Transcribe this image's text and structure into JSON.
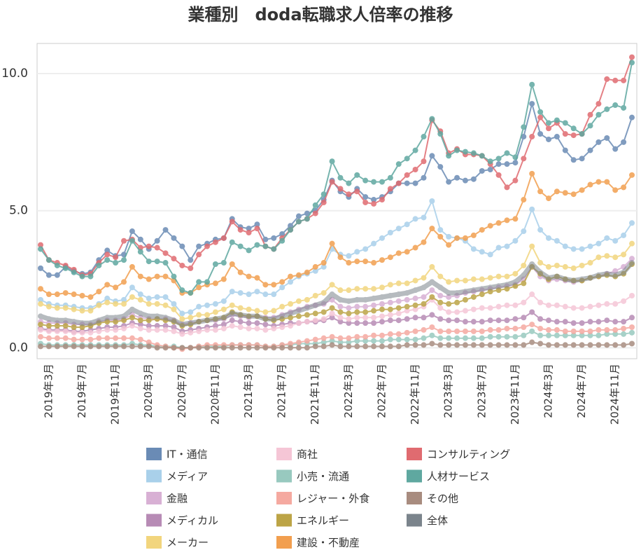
{
  "chart_data": {
    "type": "line",
    "title": "業種別　doda転職求人倍率の推移",
    "categories": [
      null,
      "2019年3月",
      null,
      null,
      null,
      "2019年7月",
      null,
      null,
      null,
      "2019年11月",
      null,
      null,
      null,
      "2020年3月",
      null,
      null,
      null,
      "2020年7月",
      null,
      null,
      null,
      "2020年11月",
      null,
      null,
      null,
      "2021年3月",
      null,
      null,
      null,
      "2021年7月",
      null,
      null,
      null,
      "2021年11月",
      null,
      null,
      null,
      "2022年3月",
      null,
      null,
      null,
      "2022年7月",
      null,
      null,
      null,
      "2022年11月",
      null,
      null,
      null,
      "2023年3月",
      null,
      null,
      null,
      "2023年7月",
      null,
      null,
      null,
      "2023年11月",
      null,
      null,
      null,
      "2024年3月",
      null,
      null,
      null,
      "2024年7月",
      null,
      null,
      null,
      "2024年11月",
      null,
      null
    ],
    "ylim": [
      -0.4,
      11.1
    ],
    "yticks": [
      {
        "value": 0,
        "label": "0.0"
      },
      {
        "value": 5,
        "label": "5.0"
      },
      {
        "value": 10,
        "label": "10.0"
      }
    ],
    "grid": true,
    "series": [
      {
        "name": "IT・通信",
        "color": "#6a8bb5",
        "linewidth": 2,
        "values": [
          2.9,
          2.65,
          2.65,
          2.95,
          2.8,
          2.7,
          2.75,
          3.2,
          3.55,
          3.35,
          3.4,
          4.25,
          3.95,
          3.6,
          3.9,
          4.3,
          4.0,
          3.7,
          3.2,
          3.7,
          3.8,
          3.95,
          4.0,
          4.7,
          4.4,
          4.35,
          4.5,
          3.95,
          4.0,
          4.15,
          4.45,
          4.8,
          4.9,
          5.0,
          5.4,
          6.1,
          5.7,
          5.5,
          5.8,
          5.5,
          5.4,
          5.5,
          5.7,
          6.0,
          6.0,
          6.0,
          6.2,
          7.0,
          6.6,
          6.05,
          6.2,
          6.1,
          6.15,
          6.45,
          6.5,
          6.7,
          6.7,
          6.75,
          7.7,
          8.9,
          7.8,
          7.6,
          7.7,
          7.2,
          6.85,
          6.9,
          7.2,
          7.5,
          7.65,
          7.25,
          7.5,
          8.4
        ]
      },
      {
        "name": "メディア",
        "color": "#a9d0ea",
        "linewidth": 2,
        "values": [
          1.75,
          1.6,
          1.55,
          1.55,
          1.5,
          1.45,
          1.45,
          1.6,
          1.8,
          1.7,
          1.75,
          2.2,
          1.95,
          1.8,
          1.85,
          1.85,
          1.6,
          1.25,
          1.3,
          1.5,
          1.55,
          1.6,
          1.7,
          2.05,
          2.0,
          1.95,
          2.05,
          1.95,
          1.95,
          2.2,
          2.4,
          2.6,
          2.7,
          2.8,
          2.95,
          3.6,
          3.4,
          3.35,
          3.5,
          3.6,
          3.8,
          4.0,
          4.2,
          4.35,
          4.5,
          4.7,
          4.75,
          5.35,
          4.3,
          4.05,
          4.0,
          3.9,
          3.6,
          3.5,
          3.4,
          3.65,
          3.7,
          3.9,
          4.25,
          5.05,
          4.3,
          4.0,
          3.9,
          3.7,
          3.6,
          3.6,
          3.7,
          3.8,
          4.0,
          3.9,
          4.1,
          4.55
        ]
      },
      {
        "name": "金融",
        "color": "#d8b0d4",
        "linewidth": 2,
        "values": [
          0.95,
          0.9,
          0.9,
          0.9,
          0.85,
          0.85,
          0.85,
          0.95,
          1.0,
          1.0,
          1.05,
          1.2,
          1.1,
          1.05,
          1.05,
          1.05,
          1.0,
          0.85,
          0.9,
          0.95,
          1.0,
          1.0,
          1.05,
          1.2,
          1.15,
          1.1,
          1.15,
          1.1,
          1.1,
          1.2,
          1.3,
          1.4,
          1.5,
          1.55,
          1.6,
          1.75,
          1.5,
          1.45,
          1.5,
          1.5,
          1.55,
          1.6,
          1.65,
          1.7,
          1.75,
          1.8,
          1.85,
          2.1,
          1.9,
          1.85,
          1.9,
          2.0,
          2.05,
          2.1,
          2.15,
          2.2,
          2.25,
          2.3,
          2.5,
          2.95,
          2.6,
          2.45,
          2.5,
          2.45,
          2.4,
          2.45,
          2.55,
          2.6,
          2.7,
          2.8,
          2.95,
          3.25
        ]
      },
      {
        "name": "メディカル",
        "color": "#b78bb5",
        "linewidth": 2,
        "values": [
          0.7,
          0.65,
          0.65,
          0.65,
          0.6,
          0.6,
          0.65,
          0.7,
          0.75,
          0.75,
          0.8,
          0.9,
          0.85,
          0.8,
          0.8,
          0.8,
          0.75,
          0.6,
          0.65,
          0.7,
          0.75,
          0.8,
          0.85,
          1.0,
          0.95,
          0.9,
          0.9,
          0.85,
          0.8,
          0.85,
          0.9,
          0.9,
          0.95,
          0.95,
          1.0,
          1.1,
          0.95,
          0.9,
          0.9,
          0.9,
          0.9,
          0.95,
          1.0,
          1.0,
          1.05,
          1.1,
          1.1,
          1.2,
          1.05,
          1.0,
          1.0,
          0.95,
          0.95,
          0.95,
          1.0,
          1.0,
          1.0,
          1.05,
          1.1,
          1.3,
          1.05,
          1.0,
          0.95,
          0.95,
          0.9,
          0.9,
          0.95,
          0.95,
          1.0,
          0.95,
          0.95,
          1.1
        ]
      },
      {
        "name": "メーカー",
        "color": "#f2d57d",
        "linewidth": 2,
        "values": [
          1.6,
          1.5,
          1.45,
          1.45,
          1.4,
          1.35,
          1.35,
          1.55,
          1.65,
          1.6,
          1.6,
          1.85,
          1.75,
          1.6,
          1.6,
          1.55,
          1.4,
          1.05,
          1.1,
          1.2,
          1.2,
          1.3,
          1.4,
          1.55,
          1.45,
          1.4,
          1.35,
          1.3,
          1.35,
          1.5,
          1.6,
          1.7,
          1.75,
          1.9,
          2.0,
          2.3,
          2.1,
          2.1,
          2.15,
          2.15,
          2.15,
          2.2,
          2.3,
          2.35,
          2.35,
          2.45,
          2.55,
          2.95,
          2.6,
          2.4,
          2.45,
          2.45,
          2.5,
          2.5,
          2.55,
          2.6,
          2.6,
          2.7,
          3.0,
          3.7,
          3.1,
          2.95,
          3.0,
          2.95,
          2.9,
          3.0,
          3.1,
          3.3,
          3.35,
          3.3,
          3.4,
          3.8
        ]
      },
      {
        "name": "商社",
        "color": "#f5c6d6",
        "linewidth": 2,
        "values": [
          0.65,
          0.6,
          0.6,
          0.6,
          0.55,
          0.55,
          0.55,
          0.6,
          0.65,
          0.65,
          0.7,
          0.8,
          0.7,
          0.65,
          0.65,
          0.65,
          0.6,
          0.5,
          0.55,
          0.6,
          0.65,
          0.65,
          0.7,
          0.8,
          0.75,
          0.7,
          0.7,
          0.65,
          0.7,
          0.75,
          0.8,
          0.9,
          0.95,
          1.0,
          1.05,
          1.25,
          1.1,
          1.05,
          1.1,
          1.1,
          1.1,
          1.15,
          1.2,
          1.25,
          1.35,
          1.4,
          1.5,
          1.75,
          1.45,
          1.3,
          1.3,
          1.35,
          1.4,
          1.45,
          1.45,
          1.5,
          1.55,
          1.55,
          1.65,
          1.95,
          1.65,
          1.55,
          1.55,
          1.5,
          1.45,
          1.45,
          1.5,
          1.55,
          1.6,
          1.6,
          1.7,
          1.9
        ]
      },
      {
        "name": "小売・流通",
        "color": "#98c9bf",
        "linewidth": 2,
        "values": [
          0.15,
          0.1,
          0.1,
          0.1,
          0.1,
          0.1,
          0.1,
          0.1,
          0.1,
          0.1,
          0.1,
          0.15,
          0.1,
          0.1,
          0.05,
          0.05,
          0.05,
          0.0,
          0.0,
          0.05,
          0.05,
          0.05,
          0.05,
          0.1,
          0.1,
          0.1,
          0.1,
          0.05,
          0.05,
          0.1,
          0.1,
          0.15,
          0.15,
          0.15,
          0.2,
          0.25,
          0.2,
          0.2,
          0.25,
          0.25,
          0.25,
          0.25,
          0.3,
          0.3,
          0.3,
          0.3,
          0.35,
          0.45,
          0.35,
          0.35,
          0.35,
          0.35,
          0.35,
          0.35,
          0.4,
          0.4,
          0.4,
          0.4,
          0.45,
          0.6,
          0.45,
          0.45,
          0.45,
          0.45,
          0.45,
          0.45,
          0.45,
          0.45,
          0.5,
          0.5,
          0.5,
          0.55
        ]
      },
      {
        "name": "レジャー・外食",
        "color": "#f5a9a0",
        "linewidth": 2,
        "values": [
          0.4,
          0.35,
          0.35,
          0.35,
          0.3,
          0.3,
          0.3,
          0.35,
          0.35,
          0.35,
          0.35,
          0.35,
          0.3,
          0.2,
          0.1,
          0.05,
          0.0,
          -0.05,
          0.0,
          0.05,
          0.1,
          0.1,
          0.1,
          0.1,
          0.1,
          0.1,
          0.1,
          0.05,
          0.05,
          0.1,
          0.15,
          0.2,
          0.25,
          0.3,
          0.35,
          0.4,
          0.35,
          0.35,
          0.4,
          0.4,
          0.45,
          0.45,
          0.5,
          0.5,
          0.55,
          0.6,
          0.65,
          0.75,
          0.6,
          0.6,
          0.6,
          0.6,
          0.6,
          0.6,
          0.65,
          0.65,
          0.7,
          0.7,
          0.75,
          0.85,
          0.7,
          0.65,
          0.65,
          0.6,
          0.6,
          0.6,
          0.6,
          0.65,
          0.65,
          0.65,
          0.7,
          0.75
        ]
      },
      {
        "name": "エネルギー",
        "color": "#bca446",
        "linewidth": 2,
        "values": [
          0.85,
          0.8,
          0.8,
          0.8,
          0.75,
          0.75,
          0.8,
          0.9,
          0.95,
          0.95,
          1.0,
          1.1,
          1.0,
          1.0,
          1.05,
          1.0,
          0.95,
          0.8,
          0.85,
          0.95,
          1.0,
          1.05,
          1.1,
          1.3,
          1.2,
          1.15,
          1.15,
          1.05,
          1.0,
          1.05,
          1.1,
          1.15,
          1.2,
          1.25,
          1.3,
          1.45,
          1.3,
          1.25,
          1.3,
          1.3,
          1.35,
          1.4,
          1.4,
          1.45,
          1.5,
          1.55,
          1.6,
          1.85,
          1.65,
          1.6,
          1.65,
          1.75,
          1.85,
          1.95,
          2.05,
          2.1,
          2.15,
          2.25,
          2.35,
          2.95,
          2.7,
          2.5,
          2.6,
          2.5,
          2.45,
          2.45,
          2.55,
          2.6,
          2.65,
          2.6,
          2.7,
          3.05
        ]
      },
      {
        "name": "建設・不動産",
        "color": "#f29f4f",
        "linewidth": 2,
        "values": [
          2.15,
          1.95,
          1.95,
          2.0,
          1.95,
          1.9,
          1.85,
          2.05,
          2.3,
          2.2,
          2.4,
          2.95,
          2.6,
          2.5,
          2.6,
          2.6,
          2.45,
          2.0,
          2.0,
          2.2,
          2.3,
          2.35,
          2.5,
          3.05,
          2.75,
          2.6,
          2.55,
          2.3,
          2.3,
          2.4,
          2.6,
          2.65,
          2.75,
          2.95,
          3.1,
          3.8,
          3.3,
          3.1,
          3.15,
          3.15,
          3.1,
          3.2,
          3.3,
          3.45,
          3.5,
          3.65,
          3.85,
          4.35,
          4.05,
          3.75,
          4.0,
          4.0,
          4.1,
          4.3,
          4.45,
          4.55,
          4.65,
          4.7,
          5.4,
          6.35,
          5.7,
          5.45,
          5.7,
          5.65,
          5.6,
          5.75,
          5.95,
          6.05,
          6.05,
          5.75,
          5.85,
          6.3
        ]
      },
      {
        "name": "コンサルティング",
        "color": "#e06b70",
        "linewidth": 2,
        "values": [
          3.75,
          3.2,
          3.1,
          3.0,
          2.85,
          2.65,
          2.7,
          3.1,
          3.4,
          3.3,
          3.9,
          3.95,
          3.65,
          3.7,
          3.65,
          3.45,
          3.25,
          3.0,
          2.9,
          3.4,
          3.7,
          3.85,
          4.0,
          4.6,
          4.3,
          4.2,
          4.35,
          3.7,
          3.6,
          4.0,
          4.3,
          4.6,
          4.7,
          4.9,
          5.3,
          6.05,
          5.8,
          5.6,
          5.7,
          5.3,
          5.25,
          5.4,
          5.8,
          6.0,
          6.3,
          6.5,
          6.8,
          8.3,
          7.9,
          7.1,
          7.25,
          7.05,
          7.05,
          7.0,
          6.7,
          6.3,
          5.85,
          6.1,
          6.9,
          7.7,
          8.4,
          8.0,
          8.2,
          7.8,
          7.75,
          7.8,
          8.5,
          8.9,
          9.8,
          9.75,
          9.75,
          10.6
        ]
      },
      {
        "name": "人材サービス",
        "color": "#5fa8a0",
        "linewidth": 2,
        "values": [
          3.6,
          3.2,
          3.0,
          2.9,
          2.75,
          2.6,
          2.6,
          3.0,
          3.2,
          3.1,
          3.2,
          3.9,
          3.5,
          3.15,
          3.15,
          3.1,
          2.6,
          2.1,
          2.0,
          2.4,
          2.4,
          3.05,
          3.1,
          3.85,
          3.7,
          3.55,
          3.75,
          3.7,
          3.6,
          3.9,
          4.3,
          4.6,
          4.7,
          5.2,
          5.6,
          6.8,
          6.2,
          6.0,
          6.3,
          6.1,
          6.05,
          6.05,
          6.2,
          6.7,
          6.9,
          7.2,
          7.7,
          8.35,
          7.8,
          7.0,
          7.2,
          7.15,
          7.1,
          7.0,
          6.8,
          6.9,
          7.1,
          6.95,
          8.05,
          9.6,
          8.6,
          8.2,
          8.3,
          8.2,
          8.0,
          7.8,
          8.1,
          8.5,
          8.7,
          8.85,
          8.75,
          10.4
        ]
      },
      {
        "name": "その他",
        "color": "#a88c7f",
        "linewidth": 2,
        "values": [
          0.05,
          0.05,
          0.05,
          0.05,
          0.05,
          0.05,
          0.05,
          0.05,
          0.05,
          0.05,
          0.05,
          0.05,
          0.05,
          0.05,
          0.0,
          0.0,
          0.0,
          0.0,
          0.0,
          0.0,
          0.0,
          0.0,
          0.0,
          0.0,
          0.0,
          0.0,
          0.0,
          0.0,
          0.0,
          0.0,
          0.0,
          0.0,
          0.0,
          0.05,
          0.05,
          0.1,
          0.05,
          0.05,
          0.05,
          0.05,
          0.05,
          0.05,
          0.05,
          0.05,
          0.1,
          0.1,
          0.1,
          0.15,
          0.1,
          0.1,
          0.1,
          0.1,
          0.1,
          0.1,
          0.1,
          0.1,
          0.1,
          0.1,
          0.1,
          0.2,
          0.15,
          0.1,
          0.1,
          0.1,
          0.1,
          0.1,
          0.1,
          0.1,
          0.1,
          0.1,
          0.1,
          0.15
        ]
      },
      {
        "name": "全体",
        "color": "#7b848c",
        "linewidth": 7,
        "values": [
          1.15,
          1.05,
          1.0,
          1.0,
          0.95,
          0.9,
          0.9,
          1.0,
          1.1,
          1.1,
          1.15,
          1.4,
          1.25,
          1.15,
          1.15,
          1.1,
          1.0,
          0.85,
          0.9,
          0.95,
          1.0,
          1.05,
          1.1,
          1.25,
          1.2,
          1.15,
          1.15,
          1.05,
          1.05,
          1.15,
          1.25,
          1.35,
          1.45,
          1.55,
          1.65,
          1.95,
          1.75,
          1.7,
          1.75,
          1.75,
          1.8,
          1.85,
          1.9,
          1.95,
          2.0,
          2.1,
          2.2,
          2.4,
          2.2,
          2.0,
          2.0,
          2.05,
          2.1,
          2.15,
          2.2,
          2.25,
          2.3,
          2.4,
          2.65,
          3.05,
          2.75,
          2.55,
          2.6,
          2.5,
          2.45,
          2.5,
          2.55,
          2.65,
          2.7,
          2.65,
          2.75,
          3.1
        ]
      }
    ]
  }
}
